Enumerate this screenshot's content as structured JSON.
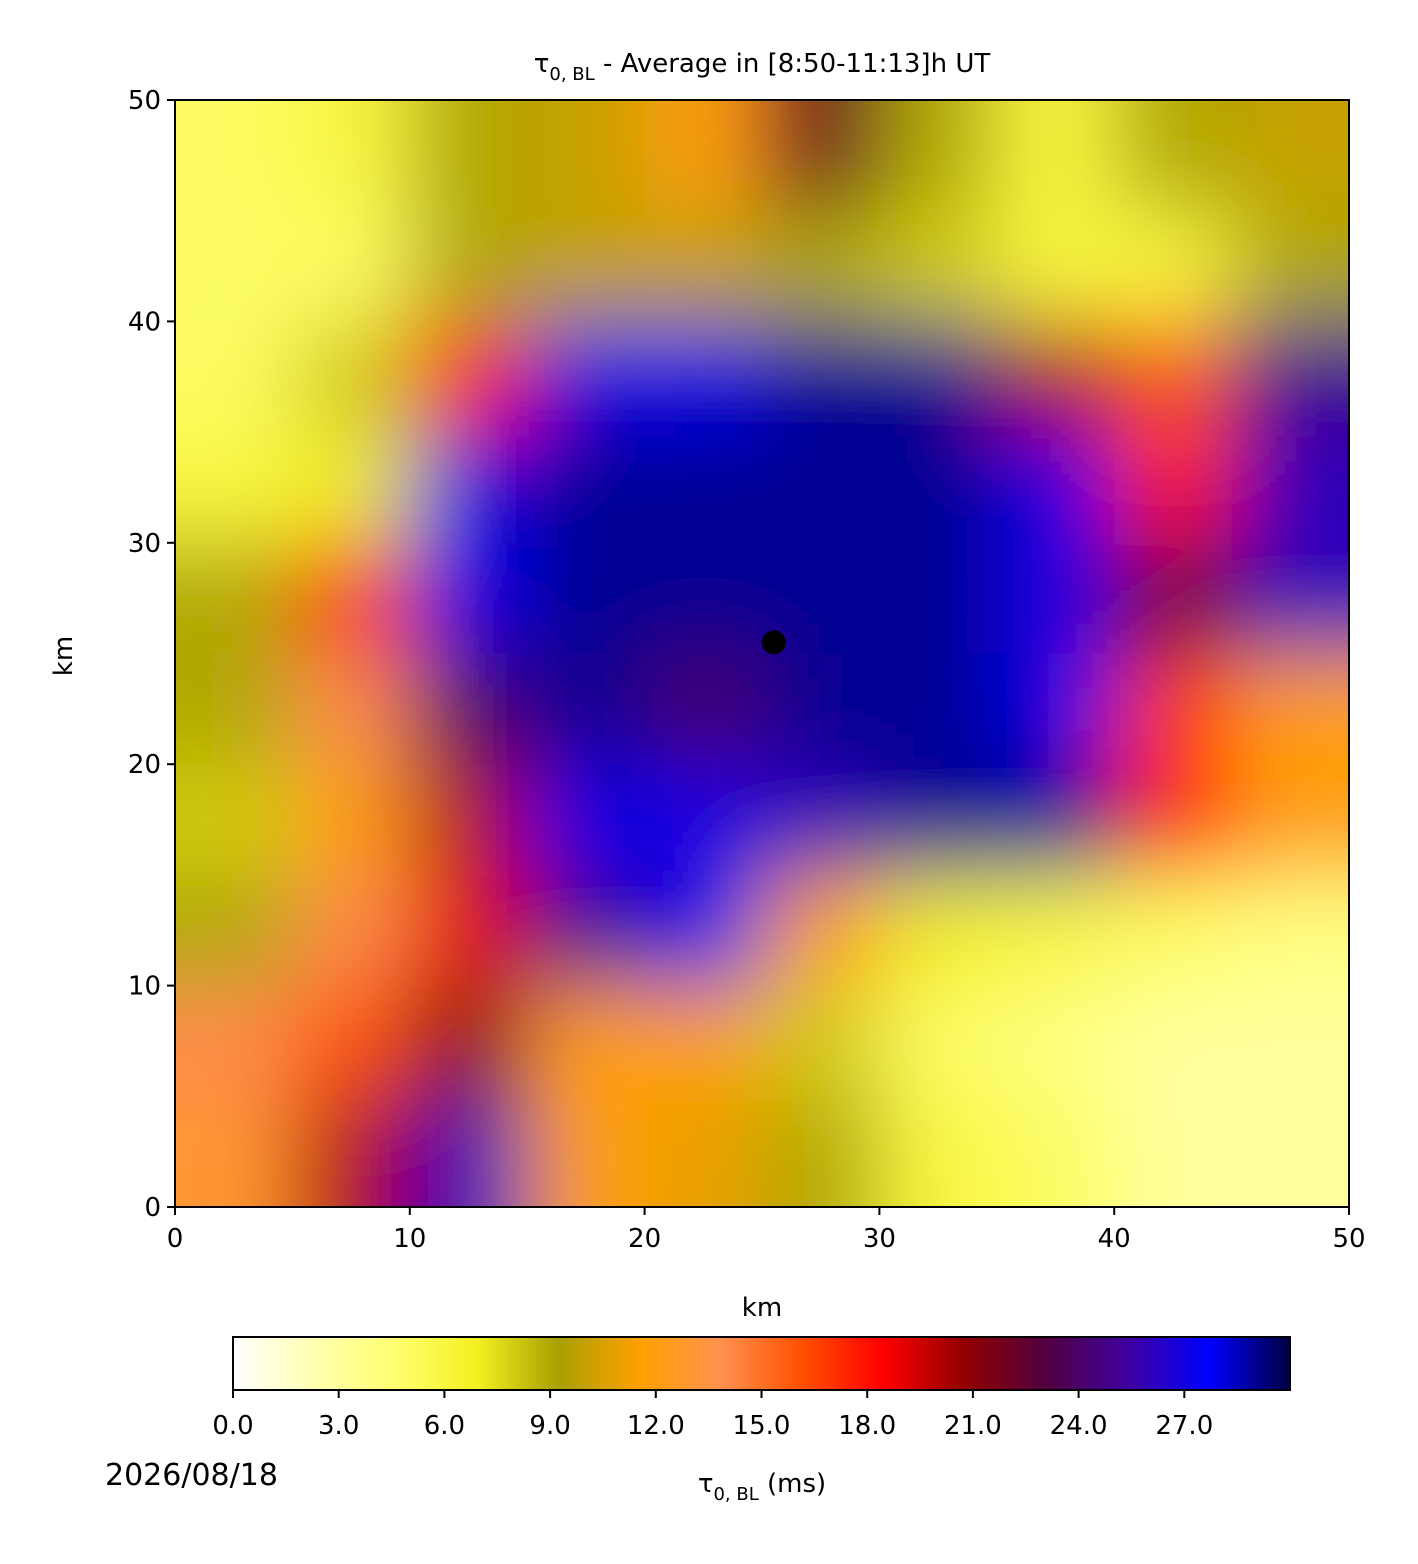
{
  "chart_data": {
    "type": "heatmap",
    "title": {
      "symbol": "τ",
      "subscript": "0, BL",
      "text": " - Average in [8:50-11:13]h UT"
    },
    "x_label": "km",
    "y_label": "km",
    "xlim": [
      0,
      50
    ],
    "ylim": [
      0,
      50
    ],
    "xticks": [
      0,
      10,
      20,
      30,
      40,
      50
    ],
    "yticks": [
      0,
      10,
      20,
      30,
      40,
      50
    ],
    "x": [
      2.5,
      7.5,
      12.5,
      17.5,
      22.5,
      27.5,
      32.5,
      37.5,
      42.5,
      47.5
    ],
    "y": [
      2.5,
      7.5,
      12.5,
      17.5,
      22.5,
      27.5,
      32.5,
      37.5,
      42.5,
      47.5
    ],
    "z": [
      [
        13,
        20,
        26,
        12,
        11,
        9,
        6,
        5,
        3,
        3
      ],
      [
        14,
        16,
        21,
        12,
        12,
        8,
        5,
        4,
        3,
        3
      ],
      [
        9,
        14,
        19,
        25,
        28,
        12,
        7,
        6,
        5,
        4
      ],
      [
        8,
        12,
        20,
        28,
        27,
        26,
        29,
        29,
        18,
        12
      ],
      [
        9,
        14,
        24,
        29,
        24,
        29,
        29,
        28,
        17,
        12
      ],
      [
        9,
        17,
        28,
        29,
        29,
        29,
        29,
        27,
        22,
        26
      ],
      [
        6,
        7,
        27,
        29,
        29,
        29,
        29,
        28,
        18,
        26
      ],
      [
        5,
        8,
        18,
        27,
        28,
        29,
        29,
        20,
        16,
        25
      ],
      [
        5,
        5,
        9,
        10,
        10,
        9,
        8,
        6,
        6,
        9
      ],
      [
        5,
        6,
        9,
        10,
        12,
        22,
        9,
        6,
        9,
        10
      ]
    ],
    "marker": {
      "x": 25.5,
      "y": 25.5,
      "color": "#000000"
    },
    "colormap": [
      "#ffffff",
      "#ffffb0",
      "#ffff70",
      "#f4f020",
      "#a8a000",
      "#ffa000",
      "#ff9050",
      "#ff5000",
      "#ff0000",
      "#900000",
      "#500040",
      "#4000a0",
      "#0000ff",
      "#000040"
    ],
    "colorbar": {
      "clim": [
        0,
        30
      ],
      "ticks": [
        {
          "value": 0,
          "label": "0.0"
        },
        {
          "value": 3,
          "label": "3.0"
        },
        {
          "value": 6,
          "label": "6.0"
        },
        {
          "value": 9,
          "label": "9.0"
        },
        {
          "value": 12,
          "label": "12.0"
        },
        {
          "value": 15,
          "label": "15.0"
        },
        {
          "value": 18,
          "label": "18.0"
        },
        {
          "value": 21,
          "label": "21.0"
        },
        {
          "value": 24,
          "label": "24.0"
        },
        {
          "value": 27,
          "label": "27.0"
        }
      ],
      "label": {
        "symbol": "τ",
        "subscript": "0, BL",
        "text": " (ms)"
      }
    },
    "date": "2026/08/18"
  }
}
